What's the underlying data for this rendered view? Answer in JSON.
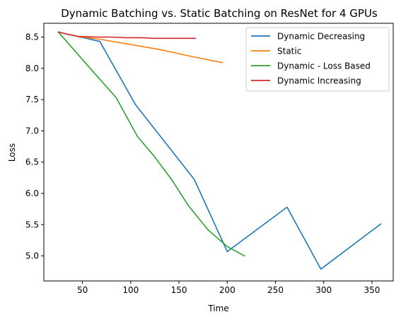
{
  "chart_data": {
    "type": "line",
    "title": "Dynamic Batching vs. Static Batching on ResNet for 4 GPUs",
    "xlabel": "Time",
    "ylabel": "Loss",
    "xlim": [
      10,
      372
    ],
    "ylim": [
      4.6,
      8.72
    ],
    "xticks": [
      50,
      100,
      150,
      200,
      250,
      300,
      350
    ],
    "yticks": [
      5.0,
      5.5,
      6.0,
      6.5,
      7.0,
      7.5,
      8.0,
      8.5
    ],
    "xtick_labels": [
      "50",
      "100",
      "150",
      "200",
      "250",
      "300",
      "350"
    ],
    "ytick_labels": [
      "5.0",
      "5.5",
      "6.0",
      "6.5",
      "7.0",
      "7.5",
      "8.0",
      "8.5"
    ],
    "grid": false,
    "legend_position": "top-right",
    "series": [
      {
        "name": "Dynamic Decreasing",
        "color": "#1f77b4",
        "x": [
          25,
          68,
          105,
          166,
          200,
          262,
          297,
          359
        ],
        "y": [
          8.58,
          8.43,
          7.42,
          6.22,
          5.07,
          5.78,
          4.79,
          5.51
        ]
      },
      {
        "name": "Static",
        "color": "#ff7f0e",
        "x": [
          25,
          45,
          70,
          100,
          130,
          160,
          195
        ],
        "y": [
          8.58,
          8.51,
          8.46,
          8.38,
          8.3,
          8.2,
          8.09
        ]
      },
      {
        "name": "Dynamic - Loss Based",
        "color": "#2ca02c",
        "x": [
          25,
          58,
          85,
          107,
          124,
          142,
          160,
          180,
          200,
          218
        ],
        "y": [
          8.58,
          8.0,
          7.53,
          6.91,
          6.6,
          6.23,
          5.8,
          5.42,
          5.15,
          5.0
        ]
      },
      {
        "name": "Dynamic Increasing",
        "color": "#d62728",
        "x": [
          25,
          45,
          65,
          80,
          95,
          110,
          125,
          145,
          167
        ],
        "y": [
          8.58,
          8.51,
          8.5,
          8.5,
          8.49,
          8.49,
          8.48,
          8.48,
          8.48
        ]
      }
    ]
  }
}
